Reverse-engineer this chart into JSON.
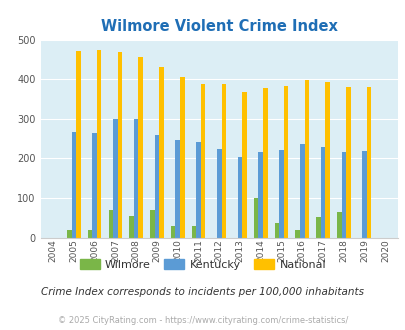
{
  "title": "Wilmore Violent Crime Index",
  "years": [
    2004,
    2005,
    2006,
    2007,
    2008,
    2009,
    2010,
    2011,
    2012,
    2013,
    2014,
    2015,
    2016,
    2017,
    2018,
    2019,
    2020
  ],
  "wilmore": [
    0,
    20,
    20,
    70,
    55,
    70,
    30,
    30,
    0,
    0,
    100,
    37,
    18,
    53,
    65,
    0,
    0
  ],
  "kentucky": [
    0,
    267,
    265,
    300,
    300,
    260,
    246,
    241,
    225,
    203,
    215,
    221,
    236,
    229,
    215,
    218,
    0
  ],
  "national": [
    0,
    471,
    474,
    468,
    456,
    432,
    405,
    388,
    388,
    368,
    378,
    383,
    398,
    394,
    381,
    380,
    0
  ],
  "wilmore_color": "#7ab648",
  "kentucky_color": "#5b9bd5",
  "national_color": "#ffc000",
  "bg_color": "#dceef5",
  "title_color": "#1f6eb5",
  "subtitle": "Crime Index corresponds to incidents per 100,000 inhabitants",
  "subtitle_color": "#333333",
  "footer": "© 2025 CityRating.com - https://www.cityrating.com/crime-statistics/",
  "footer_color": "#aaaaaa",
  "ylim": [
    0,
    500
  ],
  "yticks": [
    0,
    100,
    200,
    300,
    400,
    500
  ]
}
